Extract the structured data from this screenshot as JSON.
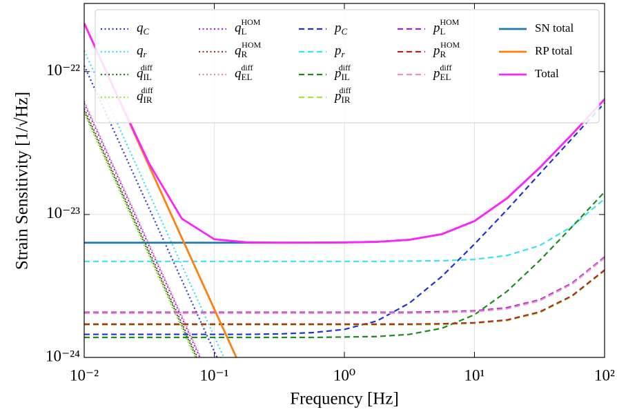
{
  "chart_data": {
    "type": "line",
    "xlabel": "Frequency [Hz]",
    "ylabel": "Strain Sensitivity [1/√Hz]",
    "xscale": "log",
    "yscale": "log",
    "grid": true,
    "legend": "upper center",
    "xlim": [
      0.01,
      100
    ],
    "ylim": [
      1e-24,
      3e-22
    ],
    "xticks": [
      {
        "value": 0.01,
        "label": "10⁻²"
      },
      {
        "value": 0.1,
        "label": "10⁻¹"
      },
      {
        "value": 1,
        "label": "10⁰"
      },
      {
        "value": 10,
        "label": "10¹"
      },
      {
        "value": 100,
        "label": "10²"
      }
    ],
    "yticks": [
      {
        "value": 1e-24,
        "label": "10⁻²⁴"
      },
      {
        "value": 1e-23,
        "label": "10⁻²³"
      },
      {
        "value": 1e-22,
        "label": "10⁻²²"
      }
    ],
    "x": [
      0.01,
      0.0178,
      0.0316,
      0.0562,
      0.1,
      0.178,
      0.316,
      0.562,
      1,
      1.78,
      3.16,
      5.62,
      10,
      17.8,
      31.6,
      56.2,
      100
    ],
    "series": [
      {
        "name": "qC",
        "color": "#2233dd",
        "linestyle": "dotted",
        "values": [
          1.1e-22,
          3.48e-23,
          1.1e-23,
          3.48e-24,
          1.1e-24,
          3.48e-25,
          null,
          null,
          null,
          null,
          null,
          null,
          null,
          null,
          null,
          null,
          null
        ]
      },
      {
        "name": "qr",
        "color": "#33e0f0",
        "linestyle": "dotted",
        "values": [
          1.4e-22,
          4.43e-23,
          1.4e-23,
          4.43e-24,
          1.4e-24,
          4.43e-25,
          null,
          null,
          null,
          null,
          null,
          null,
          null,
          null,
          null,
          null,
          null
        ]
      },
      {
        "name": "qILdiff",
        "color": "#1a7a1a",
        "linestyle": "dotted",
        "values": [
          5.3e-23,
          1.68e-23,
          5.3e-24,
          1.68e-24,
          5.3e-25,
          null,
          null,
          null,
          null,
          null,
          null,
          null,
          null,
          null,
          null,
          null,
          null
        ]
      },
      {
        "name": "qIRdiff",
        "color": "#99e632",
        "linestyle": "dotted",
        "values": [
          5.1e-23,
          1.61e-23,
          5.1e-24,
          1.61e-24,
          5.1e-25,
          null,
          null,
          null,
          null,
          null,
          null,
          null,
          null,
          null,
          null,
          null,
          null
        ]
      },
      {
        "name": "qLHOM",
        "color": "#9b1fd6",
        "linestyle": "dotted",
        "values": [
          6e-23,
          1.9e-23,
          6e-24,
          1.9e-24,
          6e-25,
          null,
          null,
          null,
          null,
          null,
          null,
          null,
          null,
          null,
          null,
          null,
          null
        ]
      },
      {
        "name": "qRHOM",
        "color": "#8b3a2a",
        "linestyle": "dotted",
        "values": [
          5.5e-23,
          1.74e-23,
          5.5e-24,
          1.74e-24,
          5.5e-25,
          null,
          null,
          null,
          null,
          null,
          null,
          null,
          null,
          null,
          null,
          null,
          null
        ]
      },
      {
        "name": "qELdiff",
        "color": "#e87fbf",
        "linestyle": "dotted",
        "values": [
          6.2e-23,
          1.96e-23,
          6.2e-24,
          1.96e-24,
          6.2e-25,
          null,
          null,
          null,
          null,
          null,
          null,
          null,
          null,
          null,
          null,
          null,
          null
        ]
      },
      {
        "name": "pC",
        "color": "#1f2fd6",
        "linestyle": "dashed",
        "values": [
          1.45e-24,
          1.45e-24,
          1.45e-24,
          1.45e-24,
          1.45e-24,
          1.45e-24,
          1.46e-24,
          1.49e-24,
          1.57e-24,
          1.8e-24,
          2.4e-24,
          3.69e-24,
          6.21e-24,
          1.08e-23,
          1.92e-23,
          3.4e-23,
          6.04e-23
        ]
      },
      {
        "name": "pr",
        "color": "#33e5f5",
        "linestyle": "dashed",
        "values": [
          4.7e-24,
          4.7e-24,
          4.7e-24,
          4.7e-24,
          4.7e-24,
          4.7e-24,
          4.7e-24,
          4.7e-24,
          4.7e-24,
          4.7e-24,
          4.72e-24,
          4.75e-24,
          4.85e-24,
          5.17e-24,
          6.05e-24,
          8.25e-24,
          1.29e-23
        ]
      },
      {
        "name": "pILdiff",
        "color": "#1a8a1a",
        "linestyle": "dashed",
        "values": [
          1.38e-24,
          1.38e-24,
          1.38e-24,
          1.38e-24,
          1.38e-24,
          1.38e-24,
          1.38e-24,
          1.38e-24,
          1.39e-24,
          1.4e-24,
          1.45e-24,
          1.6e-24,
          1.99e-24,
          2.9e-24,
          4.75e-24,
          8.2e-24,
          1.44e-23
        ]
      },
      {
        "name": "pIRdiff",
        "color": "#9fe53a",
        "linestyle": "dashed",
        "values": [
          1.69e-24,
          1.69e-24,
          1.69e-24,
          1.69e-24,
          1.69e-24,
          1.69e-24,
          1.69e-24,
          1.69e-24,
          1.69e-24,
          1.69e-24,
          1.69e-24,
          1.7e-24,
          1.73e-24,
          1.81e-24,
          2.05e-24,
          2.67e-24,
          4.04e-24
        ]
      },
      {
        "name": "pLHOM",
        "color": "#a020d8",
        "linestyle": "dashed",
        "values": [
          2.07e-24,
          2.07e-24,
          2.07e-24,
          2.07e-24,
          2.07e-24,
          2.07e-24,
          2.07e-24,
          2.07e-24,
          2.07e-24,
          2.07e-24,
          2.07e-24,
          2.09e-24,
          2.12e-24,
          2.23e-24,
          2.53e-24,
          3.31e-24,
          5.04e-24
        ]
      },
      {
        "name": "pRHOM",
        "color": "#b22222",
        "linestyle": "dashed",
        "values": [
          1.71e-24,
          1.71e-24,
          1.71e-24,
          1.71e-24,
          1.71e-24,
          1.71e-24,
          1.71e-24,
          1.71e-24,
          1.71e-24,
          1.71e-24,
          1.71e-24,
          1.72e-24,
          1.75e-24,
          1.83e-24,
          2.08e-24,
          2.7e-24,
          4.09e-24
        ]
      },
      {
        "name": "pELdiff",
        "color": "#f08cc8",
        "linestyle": "dashed",
        "values": [
          2.04e-24,
          2.04e-24,
          2.04e-24,
          2.04e-24,
          2.04e-24,
          2.04e-24,
          2.04e-24,
          2.04e-24,
          2.04e-24,
          2.04e-24,
          2.04e-24,
          2.06e-24,
          2.09e-24,
          2.19e-24,
          2.49e-24,
          3.26e-24,
          4.97e-24
        ]
      },
      {
        "name": "SN total",
        "color": "#1f77b4",
        "linestyle": "solid",
        "values": [
          6.35e-24,
          6.35e-24,
          6.35e-24,
          6.35e-24,
          6.35e-24,
          6.35e-24,
          6.35e-24,
          6.36e-24,
          6.38e-24,
          6.44e-24,
          6.66e-24,
          7.29e-24,
          9e-24,
          1.3e-23,
          2.12e-23,
          3.64e-23,
          6.41e-23
        ]
      },
      {
        "name": "RP total",
        "color": "#ff7f0e",
        "linestyle": "solid",
        "values": [
          2.18e-22,
          6.89e-23,
          2.18e-23,
          6.89e-24,
          2.18e-24,
          6.89e-25,
          null,
          null,
          null,
          null,
          null,
          null,
          null,
          null,
          null,
          null,
          null
        ]
      },
      {
        "name": "Total",
        "color": "#ff22ff",
        "linestyle": "solid",
        "values": [
          2.18e-22,
          6.92e-23,
          2.27e-23,
          9.37e-24,
          6.71e-24,
          6.39e-24,
          6.36e-24,
          6.36e-24,
          6.38e-24,
          6.44e-24,
          6.66e-24,
          7.29e-24,
          9e-24,
          1.3e-23,
          2.12e-23,
          3.64e-23,
          6.41e-23
        ]
      }
    ]
  }
}
